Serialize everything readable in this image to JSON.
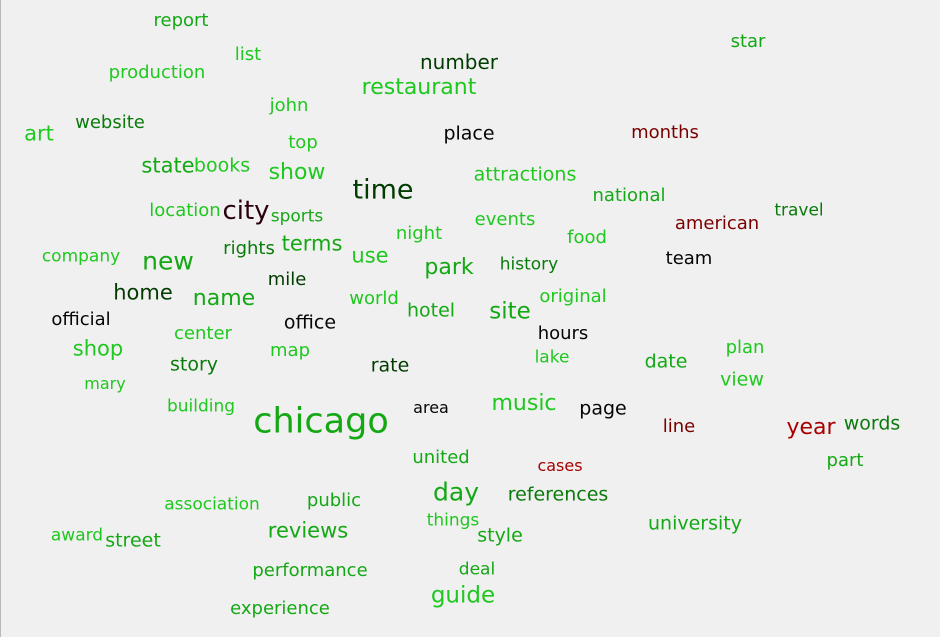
{
  "colors": {
    "background": "#f0f0f0",
    "bright_green": "#1ec81e",
    "green": "#14a814",
    "dark_green": "#0a7a0a",
    "deep_green": "#003c00",
    "black": "#050505",
    "dark_red": "#7a0000",
    "red": "#a80000"
  },
  "words": [
    {
      "text": "report",
      "color": "#14a814"
    },
    {
      "text": "list",
      "color": "#1ec81e"
    },
    {
      "text": "production",
      "color": "#1ec81e"
    },
    {
      "text": "number",
      "color": "#003c00"
    },
    {
      "text": "star",
      "color": "#14a814"
    },
    {
      "text": "restaurant",
      "color": "#1ec81e"
    },
    {
      "text": "john",
      "color": "#1ec81e"
    },
    {
      "text": "website",
      "color": "#0a7a0a"
    },
    {
      "text": "art",
      "color": "#1ec81e"
    },
    {
      "text": "top",
      "color": "#1ec81e"
    },
    {
      "text": "place",
      "color": "#050505"
    },
    {
      "text": "months",
      "color": "#7a0000"
    },
    {
      "text": "state",
      "color": "#14a814"
    },
    {
      "text": "books",
      "color": "#1ec81e"
    },
    {
      "text": "show",
      "color": "#1ec81e"
    },
    {
      "text": "time",
      "color": "#003c00"
    },
    {
      "text": "attractions",
      "color": "#1ec81e"
    },
    {
      "text": "national",
      "color": "#14a814"
    },
    {
      "text": "location",
      "color": "#1ec81e"
    },
    {
      "text": "city",
      "color": "#2a0010"
    },
    {
      "text": "sports",
      "color": "#14a814"
    },
    {
      "text": "events",
      "color": "#1ec81e"
    },
    {
      "text": "american",
      "color": "#7a0000"
    },
    {
      "text": "travel",
      "color": "#0a7a0a"
    },
    {
      "text": "night",
      "color": "#1ec81e"
    },
    {
      "text": "food",
      "color": "#1ec81e"
    },
    {
      "text": "rights",
      "color": "#0a7a0a"
    },
    {
      "text": "terms",
      "color": "#14a814"
    },
    {
      "text": "company",
      "color": "#1ec81e"
    },
    {
      "text": "new",
      "color": "#14a814"
    },
    {
      "text": "use",
      "color": "#1ec81e"
    },
    {
      "text": "park",
      "color": "#14a814"
    },
    {
      "text": "history",
      "color": "#0a7a0a"
    },
    {
      "text": "team",
      "color": "#050505"
    },
    {
      "text": "mile",
      "color": "#003c00"
    },
    {
      "text": "home",
      "color": "#003c00"
    },
    {
      "text": "name",
      "color": "#14a814"
    },
    {
      "text": "world",
      "color": "#1ec81e"
    },
    {
      "text": "original",
      "color": "#1ec81e"
    },
    {
      "text": "hotel",
      "color": "#14a814"
    },
    {
      "text": "site",
      "color": "#14a814"
    },
    {
      "text": "official",
      "color": "#050505"
    },
    {
      "text": "center",
      "color": "#1ec81e"
    },
    {
      "text": "office",
      "color": "#050505"
    },
    {
      "text": "hours",
      "color": "#050505"
    },
    {
      "text": "shop",
      "color": "#1ec81e"
    },
    {
      "text": "map",
      "color": "#1ec81e"
    },
    {
      "text": "lake",
      "color": "#1ec81e"
    },
    {
      "text": "date",
      "color": "#14a814"
    },
    {
      "text": "plan",
      "color": "#1ec81e"
    },
    {
      "text": "story",
      "color": "#0a7a0a"
    },
    {
      "text": "rate",
      "color": "#003c00"
    },
    {
      "text": "mary",
      "color": "#1ec81e"
    },
    {
      "text": "view",
      "color": "#1ec81e"
    },
    {
      "text": "building",
      "color": "#1ec81e"
    },
    {
      "text": "chicago",
      "color": "#14a814"
    },
    {
      "text": "area",
      "color": "#050505"
    },
    {
      "text": "music",
      "color": "#1ec81e"
    },
    {
      "text": "page",
      "color": "#050505"
    },
    {
      "text": "words",
      "color": "#0a7a0a"
    },
    {
      "text": "line",
      "color": "#7a0000"
    },
    {
      "text": "year",
      "color": "#a80000"
    },
    {
      "text": "united",
      "color": "#14a814"
    },
    {
      "text": "cases",
      "color": "#a80000"
    },
    {
      "text": "part",
      "color": "#14a814"
    },
    {
      "text": "day",
      "color": "#14a814"
    },
    {
      "text": "references",
      "color": "#0a7a0a"
    },
    {
      "text": "association",
      "color": "#1ec81e"
    },
    {
      "text": "public",
      "color": "#14a814"
    },
    {
      "text": "things",
      "color": "#1ec81e"
    },
    {
      "text": "university",
      "color": "#14a814"
    },
    {
      "text": "reviews",
      "color": "#14a814"
    },
    {
      "text": "award",
      "color": "#1ec81e"
    },
    {
      "text": "street",
      "color": "#14a814"
    },
    {
      "text": "style",
      "color": "#14a814"
    },
    {
      "text": "performance",
      "color": "#14a814"
    },
    {
      "text": "deal",
      "color": "#14a814"
    },
    {
      "text": "guide",
      "color": "#1ec81e"
    },
    {
      "text": "experience",
      "color": "#14a814"
    }
  ]
}
